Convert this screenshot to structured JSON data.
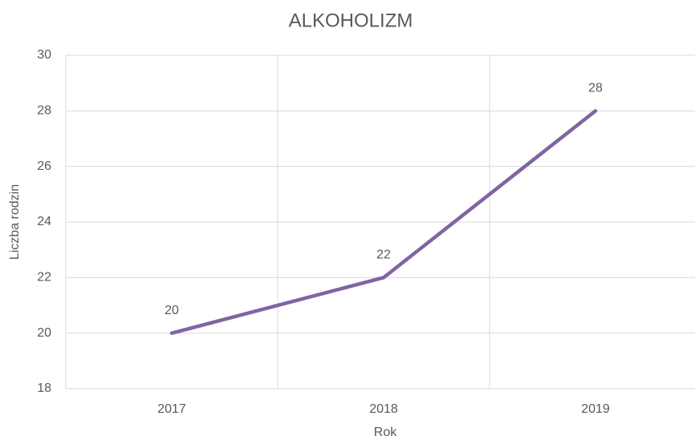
{
  "chart_data": {
    "type": "line",
    "title": "ALKOHOLIZM",
    "x_label": "Rok",
    "y_label": "Liczba rodzin",
    "categories": [
      "2017",
      "2018",
      "2019"
    ],
    "values": [
      20,
      22,
      28
    ],
    "color": "#8064a2",
    "ylim": [
      18,
      30
    ],
    "yticks": [
      18,
      20,
      22,
      24,
      26,
      28,
      30
    ],
    "grid": true
  }
}
